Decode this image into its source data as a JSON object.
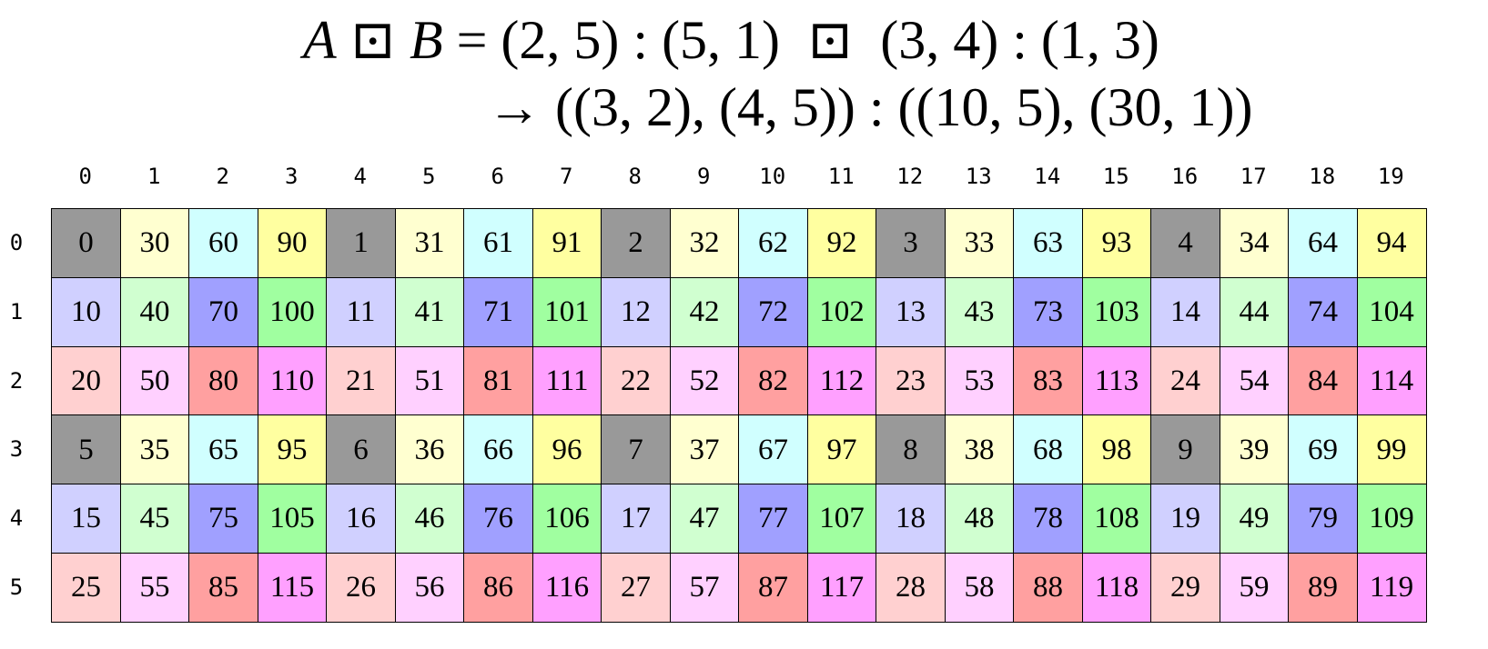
{
  "title": {
    "line1": {
      "lhs_a": "A",
      "op": "⊡",
      "lhs_b": "B",
      "rest": " = (2, 5) : (5, 1)  ⊡  (3, 4) : (1, 3)"
    },
    "line2": "→ ((3, 2), (4, 5)) : ((10, 5), (30, 1))"
  },
  "column_labels": [
    "0",
    "1",
    "2",
    "3",
    "4",
    "5",
    "6",
    "7",
    "8",
    "9",
    "10",
    "11",
    "12",
    "13",
    "14",
    "15",
    "16",
    "17",
    "18",
    "19"
  ],
  "row_labels": [
    "0",
    "1",
    "2",
    "3",
    "4",
    "5"
  ],
  "cells": [
    [
      0,
      30,
      60,
      90,
      1,
      31,
      61,
      91,
      2,
      32,
      62,
      92,
      3,
      33,
      63,
      93,
      4,
      34,
      64,
      94
    ],
    [
      10,
      40,
      70,
      100,
      11,
      41,
      71,
      101,
      12,
      42,
      72,
      102,
      13,
      43,
      73,
      103,
      14,
      44,
      74,
      104
    ],
    [
      20,
      50,
      80,
      110,
      21,
      51,
      81,
      111,
      22,
      52,
      82,
      112,
      23,
      53,
      83,
      113,
      24,
      54,
      84,
      114
    ],
    [
      5,
      35,
      65,
      95,
      6,
      36,
      66,
      96,
      7,
      37,
      67,
      97,
      8,
      38,
      68,
      98,
      9,
      39,
      69,
      99
    ],
    [
      15,
      45,
      75,
      105,
      16,
      46,
      76,
      106,
      17,
      47,
      77,
      107,
      18,
      48,
      78,
      108,
      19,
      49,
      79,
      109
    ],
    [
      25,
      55,
      85,
      115,
      26,
      56,
      86,
      116,
      27,
      57,
      87,
      117,
      28,
      58,
      88,
      118,
      29,
      59,
      89,
      119
    ]
  ],
  "color_pattern": [
    [
      "#999999",
      "#FFFFD0",
      "#D0FFFF",
      "#FFFFA0"
    ],
    [
      "#D0D0FF",
      "#D0FFD0",
      "#A0A0FF",
      "#A0FFA0"
    ],
    [
      "#FFD0D0",
      "#FFD0FF",
      "#FFA0A0",
      "#FFA0FF"
    ]
  ]
}
